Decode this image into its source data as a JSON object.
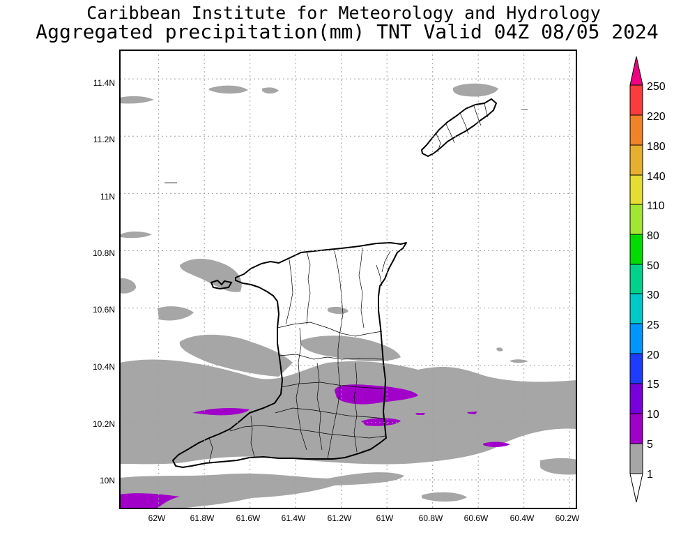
{
  "header": {
    "line1": "Caribbean Institute for Meteorology and Hydrology",
    "line2": "Aggregated precipitation(mm) TNT Valid 04Z 08/05 2024"
  },
  "map": {
    "lon_range": [
      -62.17,
      -60.17
    ],
    "lat_range": [
      9.9,
      11.5
    ],
    "grid": "dotted",
    "lon_ticks": [
      {
        "value": -62.0,
        "label": "62W"
      },
      {
        "value": -61.8,
        "label": "61.8W"
      },
      {
        "value": -61.6,
        "label": "61.6W"
      },
      {
        "value": -61.4,
        "label": "61.4W"
      },
      {
        "value": -61.2,
        "label": "61.2W"
      },
      {
        "value": -61.0,
        "label": "61W"
      },
      {
        "value": -60.8,
        "label": "60.8W"
      },
      {
        "value": -60.6,
        "label": "60.6W"
      },
      {
        "value": -60.4,
        "label": "60.4W"
      },
      {
        "value": -60.2,
        "label": "60.2W"
      }
    ],
    "lat_ticks": [
      {
        "value": 10.0,
        "label": "10N"
      },
      {
        "value": 10.2,
        "label": "10.2N"
      },
      {
        "value": 10.4,
        "label": "10.4N"
      },
      {
        "value": 10.6,
        "label": "10.6N"
      },
      {
        "value": 10.8,
        "label": "10.8N"
      },
      {
        "value": 11.0,
        "label": "11N"
      },
      {
        "value": 11.2,
        "label": "11.2N"
      },
      {
        "value": 11.4,
        "label": "11.4N"
      }
    ],
    "regions": [
      "Trinidad",
      "Tobago"
    ]
  },
  "legend": {
    "units": "mm",
    "levels": [
      {
        "label": "1",
        "color": "#ffffff"
      },
      {
        "label": "5",
        "color": "#a6a6a6"
      },
      {
        "label": "10",
        "color": "#a000c8"
      },
      {
        "label": "15",
        "color": "#7800dc"
      },
      {
        "label": "20",
        "color": "#1e3cff"
      },
      {
        "label": "25",
        "color": "#0096ff"
      },
      {
        "label": "30",
        "color": "#00c8c8"
      },
      {
        "label": "50",
        "color": "#00d28c"
      },
      {
        "label": "80",
        "color": "#00dc00"
      },
      {
        "label": "110",
        "color": "#a0e632"
      },
      {
        "label": "140",
        "color": "#e6dc32"
      },
      {
        "label": "180",
        "color": "#e6af2d"
      },
      {
        "label": "220",
        "color": "#f08228"
      },
      {
        "label": "250",
        "color": "#fa3c3c"
      }
    ],
    "top_color": "#f00082"
  },
  "colors": {
    "rain_light": "#a6a6a6",
    "rain_heavy": "#a000c8",
    "coastline": "#000000",
    "grid": "#a0a0a0"
  }
}
